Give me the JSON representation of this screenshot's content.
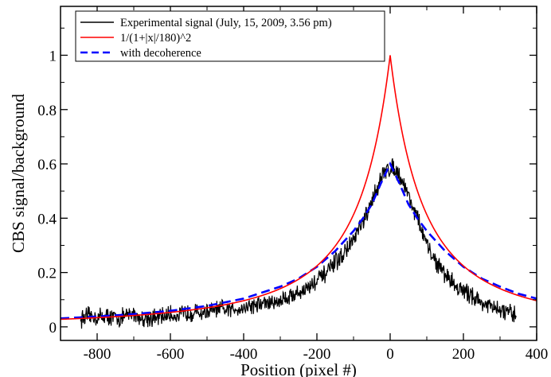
{
  "chart_data": {
    "type": "line",
    "xlabel": "Position (pixel #)",
    "ylabel": "CBS signal/background",
    "xlim": [
      -900,
      400
    ],
    "ylim": [
      -0.05,
      1.18
    ],
    "x_ticks": [
      -800,
      -600,
      -400,
      -200,
      0,
      200,
      400
    ],
    "x_tick_labels": [
      "-800",
      "-600",
      "-400",
      "-200",
      "0",
      "200",
      "400"
    ],
    "y_ticks": [
      0,
      0.2,
      0.4,
      0.6,
      0.8,
      1
    ],
    "y_tick_labels": [
      "0",
      "0.2",
      "0.4",
      "0.6",
      "0.8",
      "1"
    ],
    "grid": false,
    "legend_position": "top-left",
    "series": [
      {
        "name": "Experimental signal (July, 15, 2009, 3.56 pm)",
        "color": "#000000",
        "style": "solid",
        "x": [
          -845,
          -820,
          -800,
          -780,
          -760,
          -740,
          -720,
          -700,
          -680,
          -660,
          -640,
          -620,
          -600,
          -580,
          -560,
          -540,
          -520,
          -500,
          -480,
          -460,
          -440,
          -420,
          -400,
          -380,
          -360,
          -340,
          -320,
          -300,
          -280,
          -260,
          -240,
          -220,
          -200,
          -180,
          -160,
          -140,
          -120,
          -100,
          -80,
          -60,
          -40,
          -20,
          -10,
          0,
          10,
          20,
          40,
          60,
          80,
          100,
          120,
          140,
          160,
          180,
          200,
          220,
          240,
          260,
          280,
          300,
          320,
          345
        ],
        "y": [
          0.03,
          0.04,
          0.035,
          0.04,
          0.035,
          0.03,
          0.04,
          0.05,
          0.03,
          0.035,
          0.03,
          0.04,
          0.045,
          0.04,
          0.05,
          0.055,
          0.05,
          0.055,
          0.06,
          0.065,
          0.06,
          0.07,
          0.07,
          0.08,
          0.08,
          0.09,
          0.085,
          0.1,
          0.11,
          0.12,
          0.13,
          0.15,
          0.17,
          0.19,
          0.22,
          0.25,
          0.28,
          0.32,
          0.37,
          0.42,
          0.5,
          0.56,
          0.58,
          0.58,
          0.59,
          0.57,
          0.52,
          0.45,
          0.38,
          0.3,
          0.25,
          0.21,
          0.18,
          0.15,
          0.13,
          0.12,
          0.1,
          0.08,
          0.07,
          0.06,
          0.05,
          0.04
        ]
      },
      {
        "name": "1/(1+|x|/180)^2",
        "color": "#ff0000",
        "style": "solid",
        "formula": "1/(1+|x|/180)^2",
        "x_range": [
          -900,
          400
        ]
      },
      {
        "name": "with decoherence",
        "color": "#0000ff",
        "style": "dashed",
        "x": [
          -900,
          -800,
          -700,
          -600,
          -500,
          -400,
          -300,
          -250,
          -200,
          -150,
          -100,
          -75,
          -50,
          -25,
          0,
          25,
          50,
          75,
          100,
          150,
          200,
          250,
          300,
          350,
          400
        ],
        "y": [
          0.031,
          0.038,
          0.047,
          0.059,
          0.077,
          0.104,
          0.148,
          0.178,
          0.221,
          0.279,
          0.353,
          0.398,
          0.451,
          0.529,
          0.6,
          0.529,
          0.451,
          0.398,
          0.353,
          0.279,
          0.221,
          0.178,
          0.148,
          0.122,
          0.104
        ]
      }
    ]
  }
}
